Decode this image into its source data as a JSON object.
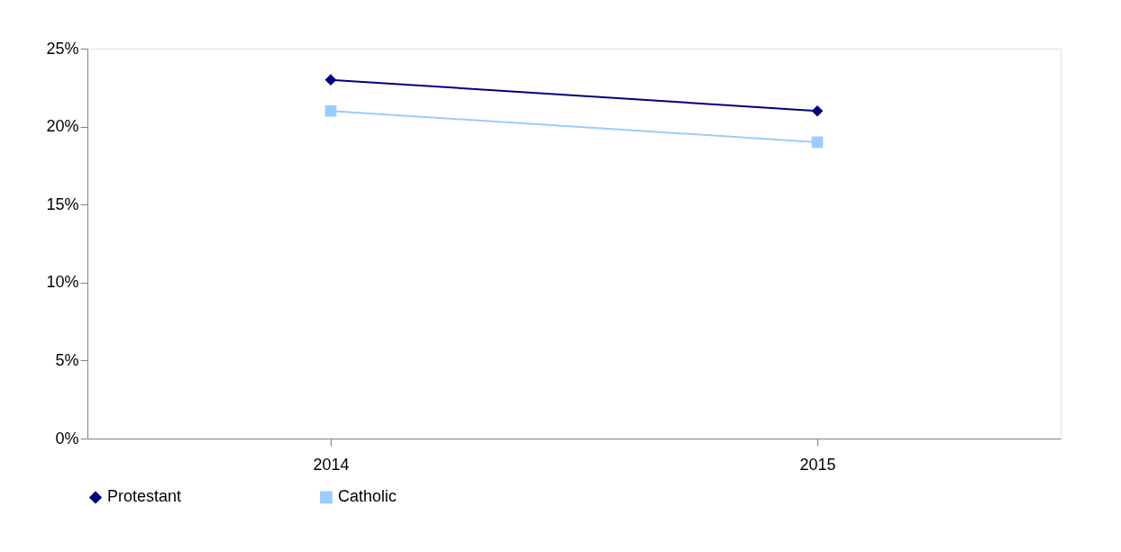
{
  "chart_data": {
    "type": "line",
    "categories": [
      "2014",
      "2015"
    ],
    "series": [
      {
        "name": "Protestant",
        "color": "#000080",
        "marker": "diamond",
        "values": [
          23,
          21
        ]
      },
      {
        "name": "Catholic",
        "color": "#99ccff",
        "marker": "square",
        "values": [
          21,
          19
        ]
      }
    ],
    "ylim": [
      0,
      25
    ],
    "yticks": [
      {
        "value": 0,
        "label": "0%"
      },
      {
        "value": 5,
        "label": "5%"
      },
      {
        "value": 10,
        "label": "10%"
      },
      {
        "value": 15,
        "label": "15%"
      },
      {
        "value": 20,
        "label": "20%"
      },
      {
        "value": 25,
        "label": "25%"
      }
    ],
    "grid": false,
    "legend": "bottom"
  }
}
